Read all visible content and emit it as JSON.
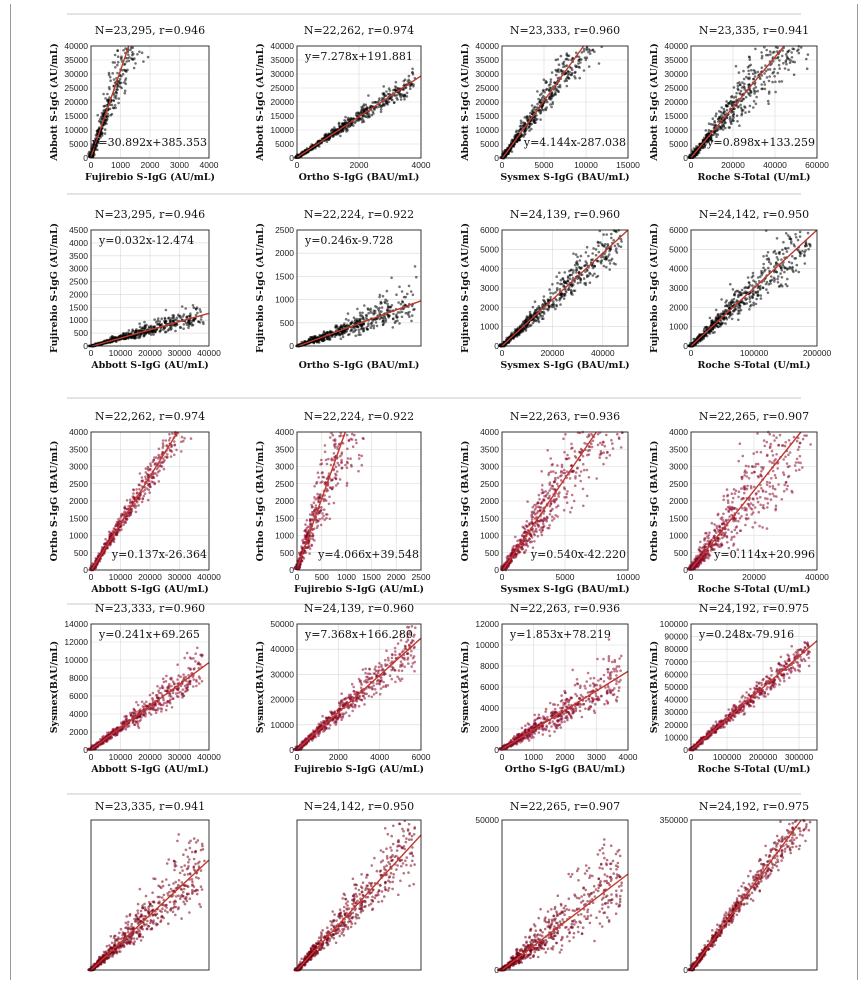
{
  "chart_data": [
    {
      "type": "scatter",
      "stat": "N=23,295, r=0.946",
      "equation": "y=30.892x+385.353",
      "xlabel": "Fujirebio S-IgG (AU/mL)",
      "ylabel": "Abbott S-IgG (AU/mL)",
      "xlim": [
        0,
        4000
      ],
      "ylim": [
        0,
        40000
      ],
      "xticks": [
        0,
        1000,
        2000,
        3000,
        4000
      ],
      "yticks": [
        0,
        5000,
        10000,
        15000,
        20000,
        25000,
        30000,
        35000,
        40000
      ],
      "slope": 30.892,
      "intercept": 385.353,
      "n": 23295,
      "r": 0.946,
      "point_color": "#000000",
      "line_color": "#c0392b"
    },
    {
      "type": "scatter",
      "stat": "N=22,262, r=0.974",
      "equation": "y=7.278x+191.881",
      "xlabel": "Ortho S-IgG (BAU/mL)",
      "ylabel": "Abbott S-IgG (AU/mL)",
      "xlim": [
        0,
        4000
      ],
      "ylim": [
        0,
        40000
      ],
      "xticks": [
        0,
        2000,
        4000
      ],
      "yticks": [
        0,
        5000,
        10000,
        15000,
        20000,
        25000,
        30000,
        35000,
        40000
      ],
      "slope": 7.278,
      "intercept": 191.881,
      "n": 22262,
      "r": 0.974,
      "point_color": "#000000",
      "line_color": "#c0392b"
    },
    {
      "type": "scatter",
      "stat": "N=23,333, r=0.960",
      "equation": "y=4.144x-287.038",
      "xlabel": "Sysmex S-IgG (BAU/mL)",
      "ylabel": "Abbott S-IgG (AU/mL)",
      "xlim": [
        0,
        15000
      ],
      "ylim": [
        0,
        40000
      ],
      "xticks": [
        0,
        5000,
        10000,
        15000
      ],
      "yticks": [
        0,
        5000,
        10000,
        15000,
        20000,
        25000,
        30000,
        35000,
        40000
      ],
      "slope": 4.144,
      "intercept": -287.038,
      "n": 23333,
      "r": 0.96,
      "point_color": "#000000",
      "line_color": "#c0392b"
    },
    {
      "type": "scatter",
      "stat": "N=23,335, r=0.941",
      "equation": "y=0.898x+133.259",
      "xlabel": "Roche S-Total (U/mL)",
      "ylabel": "Abbott S-IgG (AU/mL)",
      "xlim": [
        0,
        60000
      ],
      "ylim": [
        0,
        40000
      ],
      "xticks": [
        0,
        20000,
        40000,
        60000
      ],
      "yticks": [
        0,
        5000,
        10000,
        15000,
        20000,
        25000,
        30000,
        35000,
        40000
      ],
      "slope": 0.898,
      "intercept": 133.259,
      "n": 23335,
      "r": 0.941,
      "point_color": "#000000",
      "line_color": "#c0392b"
    },
    {
      "type": "scatter",
      "stat": "N=23,295, r=0.946",
      "equation": "y=0.032x-12.474",
      "xlabel": "Abbott S-IgG (AU/mL)",
      "ylabel": "Fujirebio S-IgG (AU/mL)",
      "xlim": [
        0,
        40000
      ],
      "ylim": [
        0,
        4500
      ],
      "xticks": [
        0,
        10000,
        20000,
        30000,
        40000
      ],
      "yticks": [
        0,
        500,
        1000,
        1500,
        2000,
        2500,
        3000,
        3500,
        4000,
        4500
      ],
      "slope": 0.032,
      "intercept": -12.474,
      "n": 23295,
      "r": 0.946,
      "point_color": "#000000",
      "line_color": "#c0392b"
    },
    {
      "type": "scatter",
      "stat": "N=22,224, r=0.922",
      "equation": "y=0.246x-9.728",
      "xlabel": "Ortho S-IgG (BAU/mL)",
      "ylabel": "Fujirebio S-IgG (AU/mL)",
      "xlim": [
        0,
        4000
      ],
      "ylim": [
        0,
        2500
      ],
      "xticks": [],
      "yticks": [
        0,
        500,
        1000,
        1500,
        2000,
        2500
      ],
      "slope": 0.246,
      "intercept": -9.728,
      "n": 22224,
      "r": 0.922,
      "point_color": "#000000",
      "line_color": "#c0392b"
    },
    {
      "type": "scatter",
      "stat": "N=24,139, r=0.960",
      "equation": "",
      "xlabel": "Sysmex S-IgG (BAU/mL)",
      "ylabel": "Fujirebio S-IgG (AU/mL)",
      "xlim": [
        0,
        50000
      ],
      "ylim": [
        0,
        6000
      ],
      "xticks": [
        0,
        20000,
        40000
      ],
      "yticks": [
        0,
        1000,
        2000,
        3000,
        4000,
        5000,
        6000
      ],
      "slope": 0.12,
      "intercept": 0,
      "n": 24139,
      "r": 0.96,
      "point_color": "#000000",
      "line_color": "#c0392b"
    },
    {
      "type": "scatter",
      "stat": "N=24,142, r=0.950",
      "equation": "",
      "xlabel": "Roche S-Total (U/mL)",
      "ylabel": "Fujirebio S-IgG (AU/mL)",
      "xlim": [
        0,
        200000
      ],
      "ylim": [
        0,
        6000
      ],
      "xticks": [
        0,
        100000,
        200000
      ],
      "yticks": [
        0,
        1000,
        2000,
        3000,
        4000,
        5000,
        6000
      ],
      "slope": 0.03,
      "intercept": 0,
      "n": 24142,
      "r": 0.95,
      "point_color": "#000000",
      "line_color": "#c0392b"
    },
    {
      "type": "scatter",
      "stat": "N=22,262, r=0.974",
      "equation": "y=0.137x-26.364",
      "xlabel": "Abbott S-IgG (AU/mL)",
      "ylabel": "Ortho S-IgG (BAU/mL)",
      "xlim": [
        0,
        40000
      ],
      "ylim": [
        0,
        4000
      ],
      "xticks": [
        0,
        10000,
        20000,
        30000,
        40000
      ],
      "yticks": [
        0,
        500,
        1000,
        1500,
        2000,
        2500,
        3000,
        3500,
        4000
      ],
      "slope": 0.137,
      "intercept": -26.364,
      "n": 22262,
      "r": 0.974,
      "point_color": "#8b0a2a",
      "line_color": "#c0392b"
    },
    {
      "type": "scatter",
      "stat": "N=22,224, r=0.922",
      "equation": "y=4.066x+39.548",
      "xlabel": "Fujirebio S-IgG (AU/mL)",
      "ylabel": "Ortho S-IgG (BAU/mL)",
      "xlim": [
        0,
        2500
      ],
      "ylim": [
        0,
        4000
      ],
      "xticks": [
        0,
        500,
        1000,
        1500,
        2000,
        2500
      ],
      "yticks": [
        0,
        500,
        1000,
        1500,
        2000,
        2500,
        3000,
        3500,
        4000
      ],
      "slope": 4.066,
      "intercept": 39.548,
      "n": 22224,
      "r": 0.922,
      "point_color": "#8b0a2a",
      "line_color": "#c0392b"
    },
    {
      "type": "scatter",
      "stat": "N=22,263, r=0.936",
      "equation": "y=0.540x-42.220",
      "xlabel": "Sysmex S-IgG (BAU/mL)",
      "ylabel": "Ortho S-IgG (BAU/mL)",
      "xlim": [
        0,
        10000
      ],
      "ylim": [
        0,
        4000
      ],
      "xticks": [
        0,
        5000,
        10000
      ],
      "yticks": [
        0,
        500,
        1000,
        1500,
        2000,
        2500,
        3000,
        3500,
        4000
      ],
      "slope": 0.54,
      "intercept": -42.22,
      "n": 22263,
      "r": 0.936,
      "point_color": "#8b0a2a",
      "line_color": "#c0392b"
    },
    {
      "type": "scatter",
      "stat": "N=22,265, r=0.907",
      "equation": "y=0.114x+20.996",
      "xlabel": "Roche S-Total (U/mL)",
      "ylabel": "Ortho S-IgG (BAU/mL)",
      "xlim": [
        0,
        40000
      ],
      "ylim": [
        0,
        4000
      ],
      "xticks": [
        0,
        20000,
        40000
      ],
      "yticks": [
        0,
        500,
        1000,
        1500,
        2000,
        2500,
        3000,
        3500,
        4000
      ],
      "slope": 0.114,
      "intercept": 20.996,
      "n": 22265,
      "r": 0.907,
      "point_color": "#8b0a2a",
      "line_color": "#c0392b"
    },
    {
      "type": "scatter",
      "stat": "N=23,333, r=0.960",
      "equation": "y=0.241x+69.265",
      "xlabel": "Abbott S-IgG (AU/mL)",
      "ylabel": "Sysmex(BAU/mL)",
      "xlim": [
        0,
        40000
      ],
      "ylim": [
        0,
        14000
      ],
      "xticks": [
        0,
        10000,
        20000,
        30000,
        40000
      ],
      "yticks": [
        0,
        2000,
        4000,
        6000,
        8000,
        10000,
        12000,
        14000
      ],
      "slope": 0.241,
      "intercept": 69.265,
      "n": 23333,
      "r": 0.96,
      "point_color": "#8b0a2a",
      "line_color": "#c0392b"
    },
    {
      "type": "scatter",
      "stat": "N=24,139, r=0.960",
      "equation": "y=7.368x+166.280",
      "xlabel": "Fujirebio S-IgG (AU/mL)",
      "ylabel": "Sysmex(BAU/mL)",
      "xlim": [
        0,
        6000
      ],
      "ylim": [
        0,
        50000
      ],
      "xticks": [
        0,
        2000,
        4000,
        6000
      ],
      "yticks": [
        0,
        10000,
        20000,
        30000,
        40000,
        50000
      ],
      "slope": 7.368,
      "intercept": 166.28,
      "n": 24139,
      "r": 0.96,
      "point_color": "#8b0a2a",
      "line_color": "#c0392b"
    },
    {
      "type": "scatter",
      "stat": "N=22,263, r=0.936",
      "equation": "y=1.853x+78.219",
      "xlabel": "Ortho S-IgG (BAU/mL)",
      "ylabel": "Sysmex(BAU/mL)",
      "xlim": [
        0,
        4000
      ],
      "ylim": [
        0,
        12000
      ],
      "xticks": [
        0,
        1000,
        2000,
        3000,
        4000
      ],
      "yticks": [
        0,
        2000,
        4000,
        6000,
        8000,
        10000,
        12000
      ],
      "slope": 1.853,
      "intercept": 78.219,
      "n": 22263,
      "r": 0.936,
      "point_color": "#8b0a2a",
      "line_color": "#c0392b"
    },
    {
      "type": "scatter",
      "stat": "N=24,192, r=0.975",
      "equation": "y=0.248x-79.916",
      "xlabel": "Roche S-Total (U/mL)",
      "ylabel": "Sysmex(BAU/mL)",
      "xlim": [
        0,
        350000
      ],
      "ylim": [
        0,
        100000
      ],
      "xticks": [
        0,
        100000,
        200000,
        300000
      ],
      "yticks": [
        0,
        10000,
        20000,
        30000,
        40000,
        50000,
        60000,
        70000,
        80000,
        90000,
        100000
      ],
      "slope": 0.248,
      "intercept": -79.916,
      "n": 24192,
      "r": 0.975,
      "point_color": "#8b0a2a",
      "line_color": "#c0392b"
    },
    {
      "type": "scatter",
      "stat": "N=23,335, r=0.941",
      "equation": "",
      "xlabel": "",
      "ylabel": "",
      "xlim": [
        0,
        40000
      ],
      "ylim": [
        0,
        60000
      ],
      "xticks": [],
      "yticks": [],
      "slope": 1.1,
      "intercept": 0,
      "n": 23335,
      "r": 0.941,
      "point_color": "#7a0018",
      "line_color": "#c0392b"
    },
    {
      "type": "scatter",
      "stat": "N=24,142, r=0.950",
      "equation": "",
      "xlabel": "",
      "ylabel": "",
      "xlim": [
        0,
        6000
      ],
      "ylim": [
        0,
        200000
      ],
      "xticks": [],
      "yticks": [],
      "slope": 30,
      "intercept": 0,
      "n": 24142,
      "r": 0.95,
      "point_color": "#7a0018",
      "line_color": "#c0392b"
    },
    {
      "type": "scatter",
      "stat": "N=22,265, r=0.907",
      "equation": "",
      "xlabel": "",
      "ylabel": "",
      "xlim": [
        0,
        4000
      ],
      "ylim": [
        0,
        50000
      ],
      "xticks": [],
      "yticks": [
        0,
        50000
      ],
      "slope": 8,
      "intercept": 0,
      "n": 22265,
      "r": 0.907,
      "point_color": "#7a0018",
      "line_color": "#c0392b"
    },
    {
      "type": "scatter",
      "stat": "N=24,192, r=0.975",
      "equation": "",
      "xlabel": "",
      "ylabel": "",
      "xlim": [
        0,
        100000
      ],
      "ylim": [
        0,
        350000
      ],
      "xticks": [],
      "yticks": [
        0,
        350000
      ],
      "slope": 4,
      "intercept": 0,
      "n": 24192,
      "r": 0.975,
      "point_color": "#7a0018",
      "line_color": "#c0392b"
    }
  ]
}
